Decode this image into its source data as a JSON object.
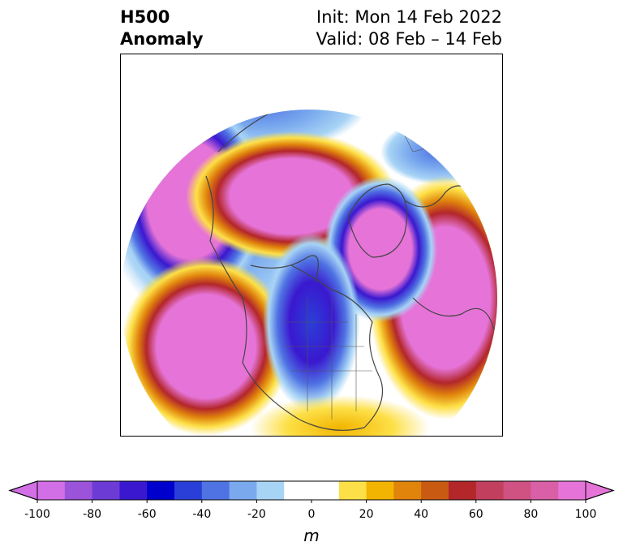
{
  "title": {
    "left_line1": "H500",
    "left_line2": "Anomaly",
    "right_line1": "Init: Mon 14 Feb 2022",
    "right_line2": "Valid: 08 Feb – 14 Feb"
  },
  "colorbar": {
    "label": "m",
    "ticks": [
      "-100",
      "-80",
      "-60",
      "-40",
      "-20",
      "0",
      "20",
      "40",
      "60",
      "80",
      "100"
    ],
    "bounds": [
      -100,
      100
    ],
    "step": 10,
    "colors": [
      "#d36fe6",
      "#9b54d9",
      "#6c3bd6",
      "#3a18cf",
      "#0000cc",
      "#2a3fd7",
      "#4f73e3",
      "#7aa9ee",
      "#a7d3f5",
      "#ffffff",
      "#ffffff",
      "#fde047",
      "#f2b400",
      "#e0840c",
      "#c95a12",
      "#b3262a",
      "#c2405e",
      "#cf5283",
      "#d95fa6",
      "#e674d8"
    ]
  },
  "map": {
    "projection": "north polar stereographic",
    "extend": "both"
  }
}
